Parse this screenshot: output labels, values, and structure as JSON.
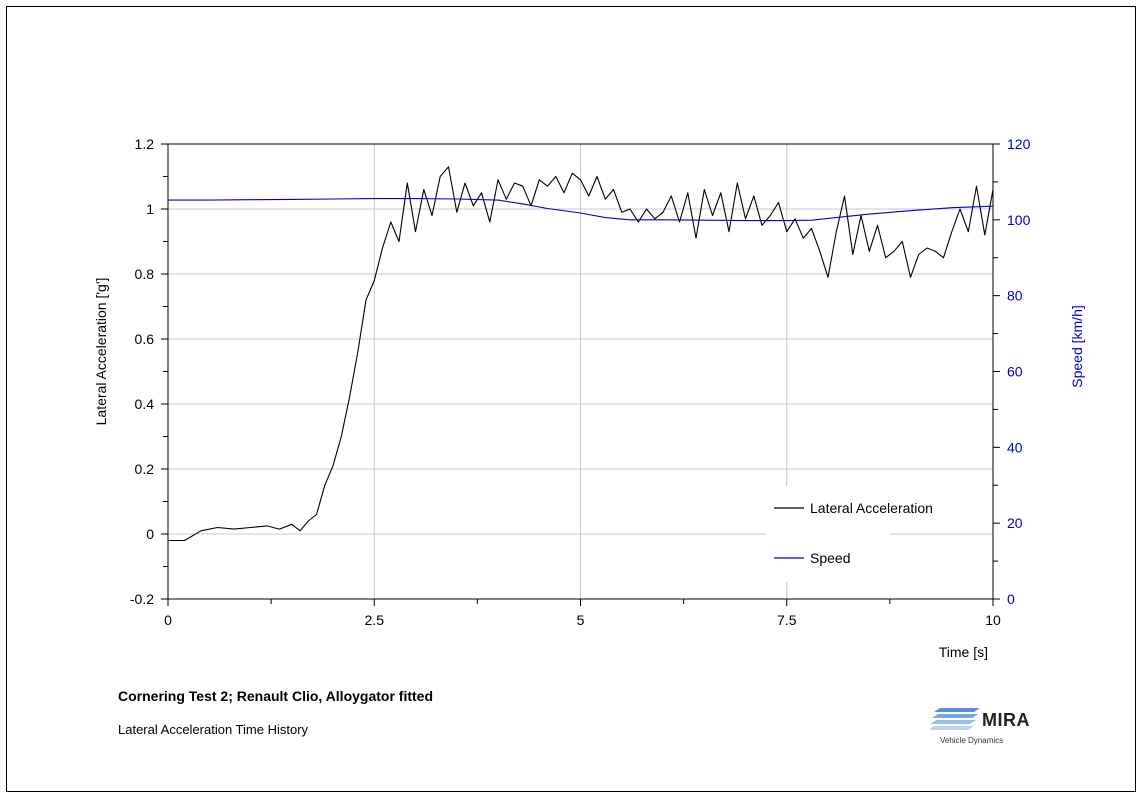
{
  "chart_data": {
    "type": "line",
    "x_axis": {
      "label": "Time [s]",
      "range": [
        0,
        10
      ],
      "ticks": [
        "0",
        "2.5",
        "5",
        "7.5",
        "10"
      ],
      "tick_values": [
        0,
        2.5,
        5,
        7.5,
        10
      ]
    },
    "y_axis_left": {
      "label": "Lateral Acceleration ['g']",
      "range": [
        -0.2,
        1.2
      ],
      "ticks": [
        "-0.2",
        "0",
        "0.2",
        "0.4",
        "0.6",
        "0.8",
        "1",
        "1.2"
      ],
      "tick_values": [
        -0.2,
        0,
        0.2,
        0.4,
        0.6,
        0.8,
        1,
        1.2
      ]
    },
    "y_axis_right": {
      "label": "Speed [km/h]",
      "range": [
        0,
        120
      ],
      "ticks": [
        "0",
        "20",
        "40",
        "60",
        "80",
        "100",
        "120"
      ],
      "tick_values": [
        0,
        20,
        40,
        60,
        80,
        100,
        120
      ],
      "color": "#0000cc"
    },
    "grid": true,
    "legend_position": "bottom-right",
    "series": [
      {
        "name": "Lateral Acceleration",
        "axis": "left",
        "color": "#000000",
        "x": [
          0,
          0.2,
          0.4,
          0.6,
          0.8,
          1.0,
          1.2,
          1.35,
          1.5,
          1.6,
          1.7,
          1.8,
          1.9,
          2.0,
          2.1,
          2.2,
          2.3,
          2.4,
          2.5,
          2.6,
          2.7,
          2.8,
          2.9,
          3.0,
          3.1,
          3.2,
          3.3,
          3.4,
          3.5,
          3.6,
          3.7,
          3.8,
          3.9,
          4.0,
          4.1,
          4.2,
          4.3,
          4.4,
          4.5,
          4.6,
          4.7,
          4.8,
          4.9,
          5.0,
          5.1,
          5.2,
          5.3,
          5.4,
          5.5,
          5.6,
          5.7,
          5.8,
          5.9,
          6.0,
          6.1,
          6.2,
          6.3,
          6.4,
          6.5,
          6.6,
          6.7,
          6.8,
          6.9,
          7.0,
          7.1,
          7.2,
          7.3,
          7.4,
          7.5,
          7.6,
          7.7,
          7.8,
          7.9,
          8.0,
          8.1,
          8.2,
          8.3,
          8.4,
          8.5,
          8.6,
          8.7,
          8.8,
          8.9,
          9.0,
          9.1,
          9.2,
          9.3,
          9.4,
          9.5,
          9.6,
          9.7,
          9.8,
          9.9,
          10.0
        ],
        "y": [
          -0.02,
          -0.02,
          0.01,
          0.02,
          0.015,
          0.02,
          0.025,
          0.015,
          0.03,
          0.01,
          0.04,
          0.06,
          0.15,
          0.21,
          0.3,
          0.42,
          0.56,
          0.72,
          0.78,
          0.88,
          0.96,
          0.9,
          1.08,
          0.93,
          1.06,
          0.98,
          1.1,
          1.13,
          0.99,
          1.08,
          1.01,
          1.05,
          0.96,
          1.09,
          1.03,
          1.08,
          1.07,
          1.01,
          1.09,
          1.07,
          1.1,
          1.05,
          1.11,
          1.09,
          1.04,
          1.1,
          1.03,
          1.06,
          0.99,
          1.0,
          0.96,
          1.0,
          0.97,
          0.99,
          1.04,
          0.96,
          1.05,
          0.91,
          1.06,
          0.98,
          1.05,
          0.93,
          1.08,
          0.97,
          1.04,
          0.95,
          0.98,
          1.02,
          0.93,
          0.97,
          0.91,
          0.94,
          0.87,
          0.79,
          0.93,
          1.04,
          0.86,
          0.98,
          0.87,
          0.95,
          0.85,
          0.87,
          0.9,
          0.79,
          0.86,
          0.88,
          0.87,
          0.85,
          0.93,
          1.0,
          0.93,
          1.07,
          0.92,
          1.06
        ]
      },
      {
        "name": "Speed",
        "axis": "right",
        "color": "#0000cc",
        "x": [
          0,
          0.5,
          1.0,
          1.5,
          2.0,
          2.5,
          3.0,
          3.5,
          4.0,
          4.3,
          4.6,
          5.0,
          5.3,
          5.6,
          6.0,
          6.5,
          7.0,
          7.5,
          7.8,
          8.1,
          8.5,
          9.0,
          9.5,
          10.0
        ],
        "y": [
          105.2,
          105.2,
          105.3,
          105.4,
          105.5,
          105.6,
          105.6,
          105.5,
          105.2,
          104.2,
          103.0,
          101.8,
          100.6,
          100.0,
          100.0,
          99.9,
          99.8,
          99.8,
          99.9,
          100.6,
          101.5,
          102.4,
          103.2,
          103.6
        ]
      }
    ]
  },
  "caption": {
    "title": "Cornering Test 2; Renault Clio, Alloygator fitted",
    "subtitle": "Lateral Acceleration Time History"
  },
  "logo": {
    "word": "MIRA",
    "tagline": "Vehicle Dynamics",
    "color": "#5a8fd8"
  }
}
